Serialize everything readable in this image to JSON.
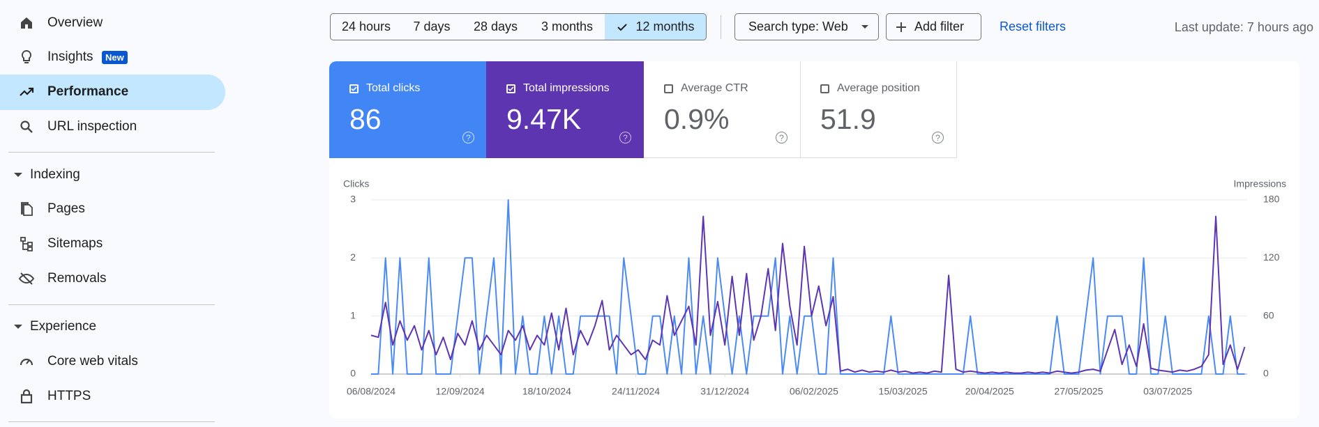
{
  "nav": {
    "top": [
      "Overview",
      "Insights",
      "Performance",
      "URL inspection"
    ],
    "badge": "New",
    "sections": [
      {
        "title": "Indexing",
        "items": [
          "Pages",
          "Sitemaps",
          "Removals"
        ]
      },
      {
        "title": "Experience",
        "items": [
          "Core web vitals",
          "HTTPS"
        ]
      }
    ]
  },
  "toolbar": {
    "ranges": [
      "24 hours",
      "7 days",
      "28 days",
      "3 months",
      "12 months"
    ],
    "search_type": "Search type: Web",
    "add_filter": "Add filter",
    "reset": "Reset filters",
    "last_update": "Last update: 7 hours ago"
  },
  "metrics": [
    {
      "label": "Total clicks",
      "value": "86"
    },
    {
      "label": "Total impressions",
      "value": "9.47K"
    },
    {
      "label": "Average CTR",
      "value": "0.9%"
    },
    {
      "label": "Average position",
      "value": "51.9"
    }
  ],
  "chart_data": {
    "type": "line",
    "y_label": "Clicks",
    "y2_label": "Impressions",
    "x": [
      "2024-08-06",
      "2024-08-09",
      "2024-08-12",
      "2024-08-15",
      "2024-08-18",
      "2024-08-21",
      "2024-08-24",
      "2024-08-27",
      "2024-08-30",
      "2024-09-02",
      "2024-09-05",
      "2024-09-08",
      "2024-09-11",
      "2024-09-14",
      "2024-09-17",
      "2024-09-20",
      "2024-09-23",
      "2024-09-26",
      "2024-09-29",
      "2024-10-02",
      "2024-10-05",
      "2024-10-08",
      "2024-10-11",
      "2024-10-14",
      "2024-10-17",
      "2024-10-20",
      "2024-10-23",
      "2024-10-26",
      "2024-10-29",
      "2024-11-01",
      "2024-11-04",
      "2024-11-07",
      "2024-11-10",
      "2024-11-13",
      "2024-11-16",
      "2024-11-19",
      "2024-11-22",
      "2024-11-25",
      "2024-11-28",
      "2024-12-01",
      "2024-12-04",
      "2024-12-07",
      "2024-12-10",
      "2024-12-13",
      "2024-12-16",
      "2024-12-19",
      "2024-12-22",
      "2024-12-25",
      "2024-12-28",
      "2024-12-31",
      "2025-01-03",
      "2025-01-06",
      "2025-01-09",
      "2025-01-12",
      "2025-01-15",
      "2025-01-18",
      "2025-01-21",
      "2025-01-24",
      "2025-01-27",
      "2025-01-30",
      "2025-02-02",
      "2025-02-05",
      "2025-02-08",
      "2025-02-11",
      "2025-02-14",
      "2025-02-17",
      "2025-02-20",
      "2025-02-23",
      "2025-02-26",
      "2025-03-01",
      "2025-03-04",
      "2025-03-07",
      "2025-03-10",
      "2025-03-13",
      "2025-03-16",
      "2025-03-19",
      "2025-03-22",
      "2025-03-25",
      "2025-03-28",
      "2025-03-31",
      "2025-04-03",
      "2025-04-06",
      "2025-04-09",
      "2025-04-12",
      "2025-04-15",
      "2025-04-18",
      "2025-04-21",
      "2025-04-24",
      "2025-04-27",
      "2025-04-30",
      "2025-05-03",
      "2025-05-06",
      "2025-05-09",
      "2025-05-12",
      "2025-05-15",
      "2025-05-18",
      "2025-05-21",
      "2025-05-24",
      "2025-05-27",
      "2025-05-30",
      "2025-06-02",
      "2025-06-05",
      "2025-06-08",
      "2025-06-11",
      "2025-06-14",
      "2025-06-17",
      "2025-06-20",
      "2025-06-23",
      "2025-06-26",
      "2025-06-29",
      "2025-07-02",
      "2025-07-05",
      "2025-07-08",
      "2025-07-11",
      "2025-07-14",
      "2025-07-17",
      "2025-07-20",
      "2025-07-23",
      "2025-07-26",
      "2025-07-29",
      "2025-08-01",
      "2025-08-04"
    ],
    "xlim": [
      "2024-08-06",
      "2025-08-05"
    ],
    "xticks": [
      {
        "value": "2024-08-06",
        "label": "06/08/2024"
      },
      {
        "value": "2024-09-12",
        "label": "12/09/2024"
      },
      {
        "value": "2024-10-18",
        "label": "18/10/2024"
      },
      {
        "value": "2024-11-24",
        "label": "24/11/2024"
      },
      {
        "value": "2024-12-31",
        "label": "31/12/2024"
      },
      {
        "value": "2025-02-06",
        "label": "06/02/2025"
      },
      {
        "value": "2025-03-15",
        "label": "15/03/2025"
      },
      {
        "value": "2025-04-20",
        "label": "20/04/2025"
      },
      {
        "value": "2025-05-27",
        "label": "27/05/2025"
      },
      {
        "value": "2025-07-03",
        "label": "03/07/2025"
      }
    ],
    "ylim": [
      0,
      3
    ],
    "yticks": [
      0,
      1,
      2,
      3
    ],
    "y2lim": [
      0,
      180
    ],
    "y2ticks": [
      0,
      60,
      120,
      180
    ],
    "grid": true,
    "series": [
      {
        "name": "Clicks",
        "color": "#4a8af4",
        "values": [
          0,
          0,
          2,
          0,
          2,
          0,
          0,
          0,
          2,
          0,
          0,
          0,
          1,
          2,
          2,
          0,
          1,
          2,
          0,
          3,
          0,
          1,
          0,
          0,
          1,
          0,
          1,
          0,
          0,
          1,
          1,
          1,
          1,
          1,
          0,
          2,
          1,
          0,
          0,
          1,
          1,
          0,
          1,
          0,
          2,
          0,
          1,
          0,
          2,
          1,
          0,
          1,
          0,
          1,
          1,
          1,
          2,
          0,
          1,
          0,
          1,
          1,
          0,
          0,
          2,
          0,
          0,
          0,
          0,
          0,
          0,
          0,
          1,
          0,
          0,
          0,
          0,
          0,
          0,
          0,
          0,
          0,
          0,
          1,
          0,
          0,
          0,
          0,
          0,
          0,
          0,
          0,
          0,
          0,
          0,
          1,
          0,
          0,
          0,
          1,
          2,
          0,
          1,
          1,
          1,
          0,
          0,
          2,
          0,
          0,
          1,
          0,
          0,
          0,
          0,
          0,
          1,
          0,
          0,
          1,
          0,
          0
        ]
      },
      {
        "name": "Impressions",
        "color": "#5e35b1",
        "axis": "y2",
        "values": [
          40,
          38,
          74,
          30,
          55,
          35,
          50,
          25,
          45,
          20,
          38,
          15,
          42,
          30,
          55,
          25,
          40,
          30,
          20,
          45,
          35,
          50,
          25,
          40,
          30,
          63,
          25,
          68,
          20,
          45,
          30,
          50,
          76,
          25,
          40,
          30,
          20,
          25,
          15,
          35,
          30,
          81,
          40,
          55,
          70,
          30,
          163,
          40,
          75,
          30,
          101,
          40,
          104,
          35,
          60,
          109,
          45,
          135,
          70,
          30,
          132,
          60,
          91,
          50,
          80,
          3,
          5,
          2,
          4,
          2,
          3,
          2,
          4,
          2,
          3,
          1,
          2,
          1,
          3,
          2,
          102,
          5,
          2,
          3,
          2,
          1,
          2,
          1,
          2,
          1,
          1,
          2,
          1,
          2,
          1,
          3,
          2,
          1,
          2,
          4,
          5,
          3,
          25,
          46,
          10,
          30,
          8,
          52,
          6,
          4,
          3,
          2,
          4,
          3,
          5,
          8,
          20,
          163,
          10,
          30,
          5,
          28
        ]
      }
    ]
  }
}
